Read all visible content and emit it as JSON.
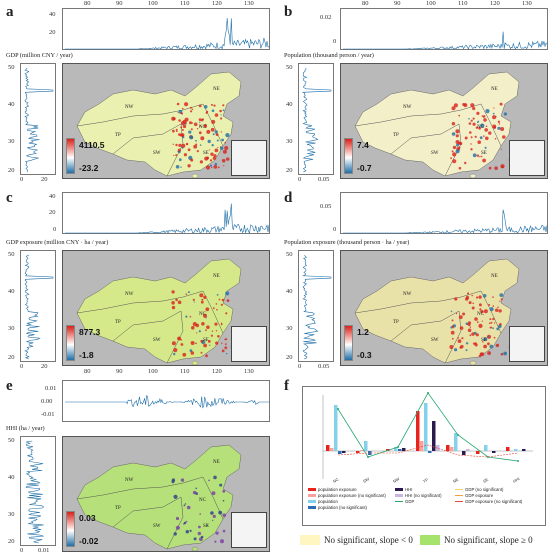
{
  "panels": [
    {
      "id": "a",
      "letter": "a",
      "title": "GDP (million CNY / year)",
      "cmax": "4110.5",
      "cmin": "-23.2",
      "top_yticks": [
        "40",
        "20"
      ],
      "left_xticks": [
        "0",
        "20"
      ],
      "theme": "gdp"
    },
    {
      "id": "b",
      "letter": "b",
      "title": "Population (thousand person / year)",
      "cmax": "7.4",
      "cmin": "-0.7",
      "top_yticks": [
        "0.02",
        "0"
      ],
      "left_xticks": [
        "0",
        "0.05"
      ],
      "theme": "pop"
    },
    {
      "id": "c",
      "letter": "c",
      "title": "GDP exposure (million CNY · ha / year)",
      "cmax": "877.3",
      "cmin": "-1.8",
      "top_yticks": [
        "40",
        "20",
        "0"
      ],
      "left_xticks": [
        "0",
        "20"
      ],
      "theme": "gdpexp"
    },
    {
      "id": "d",
      "letter": "d",
      "title": "Population exposure (thousand person · ha / year)",
      "cmax": "1.2",
      "cmin": "-0.3",
      "top_yticks": [
        "0.05",
        "0"
      ],
      "left_xticks": [
        "0",
        "0.05"
      ],
      "theme": "popexp"
    },
    {
      "id": "e",
      "letter": "e",
      "title": "HHI (ha / year)",
      "cmax": "0.03",
      "cmin": "-0.02",
      "top_yticks": [
        "0.01",
        "0.00",
        "-0.01"
      ],
      "left_xticks": [
        "0",
        "0.01"
      ],
      "theme": "hhi"
    }
  ],
  "lon_ticks": [
    "80",
    "90",
    "100",
    "110",
    "120",
    "130"
  ],
  "lat_ticks": [
    "50",
    "45",
    "40",
    "35",
    "30",
    "25",
    "20"
  ],
  "regions": [
    "NW",
    "NE",
    "TP",
    "NC",
    "SW",
    "SE"
  ],
  "panel_f": {
    "letter": "f",
    "categories": [
      "NC",
      "SW",
      "NW",
      "TP",
      "NE",
      "SE",
      "HHI"
    ],
    "legend": [
      {
        "label": "population exposure",
        "kind": "bar",
        "color": "#e8221c"
      },
      {
        "label": "population exposure (no significant)",
        "kind": "bar",
        "color": "#f5a39c"
      },
      {
        "label": "population",
        "kind": "bar",
        "color": "#86d1ea"
      },
      {
        "label": "population (no significant)",
        "kind": "bar",
        "color": "#2f6db2"
      },
      {
        "label": "HHI",
        "kind": "bar",
        "color": "#2b1a4e"
      },
      {
        "label": "HHI (no significant)",
        "kind": "bar",
        "color": "#c8b6e0"
      },
      {
        "label": "GDP",
        "kind": "line",
        "color": "#2aa872"
      },
      {
        "label": "GDP (no significant)",
        "kind": "line",
        "color": "#f5d36a"
      },
      {
        "label": "GDP exposure",
        "kind": "line",
        "color": "#f2a03a"
      },
      {
        "label": "GDP exposure (no significant)",
        "kind": "line",
        "color": "#e64a3a"
      }
    ]
  },
  "map_legend": [
    {
      "label": "No significant, slope < 0",
      "color": "#fff6c2"
    },
    {
      "label": "No significant, slope ≥ 0",
      "color": "#a6e36a"
    }
  ],
  "colors": {
    "land_green": "#b6e07a",
    "land_yellow": "#f6efb6",
    "sea": "#bdbdbd",
    "line_blue": "#1f6fa8",
    "red": "#d8211b"
  }
}
